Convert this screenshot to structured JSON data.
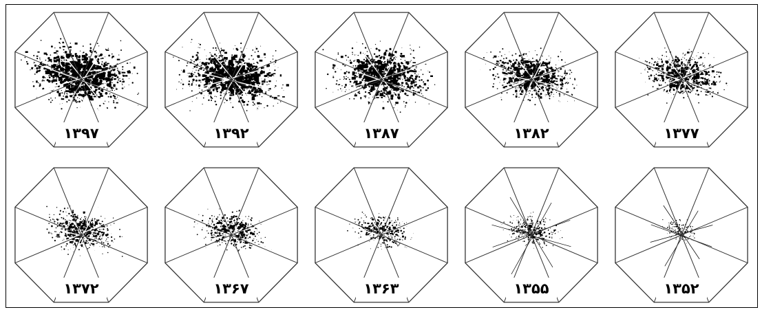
{
  "figure": {
    "panels": [
      {
        "year": "۱۳۹۷",
        "density": 1.0
      },
      {
        "year": "۱۳۹۲",
        "density": 0.95
      },
      {
        "year": "۱۳۸۷",
        "density": 0.88
      },
      {
        "year": "۱۳۸۲",
        "density": 0.72
      },
      {
        "year": "۱۳۷۷",
        "density": 0.62
      },
      {
        "year": "۱۳۷۲",
        "density": 0.52
      },
      {
        "year": "۱۳۶۷",
        "density": 0.45
      },
      {
        "year": "۱۳۶۳",
        "density": 0.35
      },
      {
        "year": "۱۳۵۵",
        "density": 0.28
      },
      {
        "year": "۱۳۵۲",
        "density": 0.1
      }
    ]
  },
  "colors": {
    "line": "#333333",
    "built": "#000000",
    "background": "#ffffff",
    "frame": "#000000"
  }
}
